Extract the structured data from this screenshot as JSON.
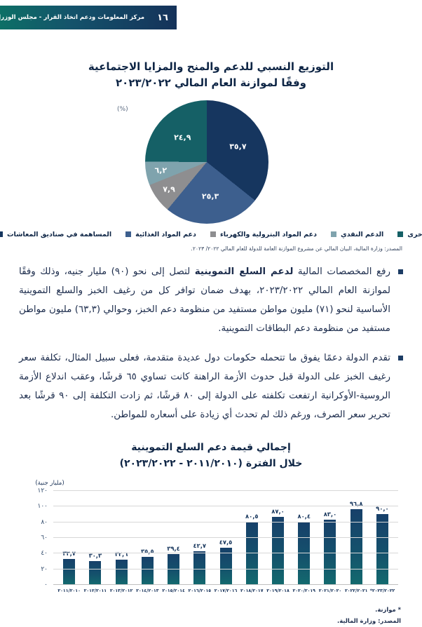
{
  "theme": {
    "header_teal": "#0d6f66",
    "header_navy": "#15325a",
    "text_navy": "#1c2c4c",
    "bar_gradient_top": "#17406a",
    "bar_gradient_bottom": "#136a6e"
  },
  "header": {
    "title": "مركز المعلومات ودعم اتخاذ القرار - مجلس الوزراء",
    "page_number": "١٦"
  },
  "paragraphs": {
    "p1_pre": "رفع المخصصات المالية ",
    "p1_bold": "لدعم السلع التموينية",
    "p1_rest": " لتصل إلى نحو (٩٠) مليار جنيه، وذلك وفقًا لموازنة العام المالي ٢٠٢٣/٢٠٢٢، بهدف ضمان توافر كل من رغيف الخبز والسلع التموينية الأساسية لنحو (٧١) مليون مواطن مستفيد من منظومة دعم الخبز، وحوالي (٦٣,٣) مليون مواطن مستفيد من منظومة دعم البطاقات التموينية.",
    "p2": "تقدم الدولة دعمًا يفوق ما تتحمله حكومات دول عديدة متقدمة، فعلى سبيل المثال، تكلفة سعر رغيف الخبز على الدولة قبل حدوث الأزمة الراهنة كانت تساوي ٦٥ قرشًا، وعقب اندلاع الأزمة الروسية-الأوكرانية ارتفعت تكلفته على الدولة إلى ٨٠ قرشًا، ثم زادت التكلفة إلى ٩٠ قرشًا بعد تحرير سعر الصرف، ورغم ذلك لم تحدث أي زيادة على أسعاره للمواطن."
  },
  "chart_data": [
    {
      "type": "pie",
      "title_line1": "التوزيع النسبي للدعم والمنح والمزايا الاجتماعية",
      "title_line2": "وفقًا لموازنة العام المالي ٢٠٢٣/٢٠٢٢",
      "unit": "(%)",
      "slices": [
        {
          "label": "المساهمة في صناديق المعاشات",
          "value": 35.7,
          "display": "٣٥,٧",
          "color": "#16365f"
        },
        {
          "label": "دعم المواد الغذائية",
          "value": 25.3,
          "display": "٢٥,٣",
          "color": "#3d5f8e"
        },
        {
          "label": "دعم المواد البترولية والكهرباء",
          "value": 7.9,
          "display": "٧,٩",
          "color": "#8e8e90"
        },
        {
          "label": "الدعم النقدي",
          "value": 6.2,
          "display": "٦,٢",
          "color": "#7fa3ad"
        },
        {
          "label": "أخرى",
          "value": 24.9,
          "display": "٢٤,٩",
          "color": "#156066"
        }
      ],
      "legend": [
        {
          "label": "أخرى",
          "color": "#156066"
        },
        {
          "label": "الدعم النقدي",
          "color": "#7fa3ad"
        },
        {
          "label": "دعم المواد البترولية والكهرباء",
          "color": "#8e8e90"
        },
        {
          "label": "دعم المواد الغذائية",
          "color": "#3d5f8e"
        },
        {
          "label": "المساهمة في صناديق المعاشات",
          "color": "#16365f"
        }
      ],
      "legend_position": "bottom",
      "source": "المصدر: وزارة المالية، البيان المالي عن مشروع الموازنة العامة للدولة للعام المالي ٢٠٢٢/ ٢٠٢٣."
    },
    {
      "type": "bar",
      "title_line1": "إجمالي قيمة دعم السلع التموينية",
      "title_line2": "خلال الفترة (٢٠١١/٢٠١٠ - ٢٠٢٣/٢٠٢٢)",
      "ylabel": "(مليار جنية)",
      "ylim": [
        0,
        120
      ],
      "grid": true,
      "yticks": [
        {
          "value": 0,
          "display": "٠"
        },
        {
          "value": 20,
          "display": "٢٠"
        },
        {
          "value": 40,
          "display": "٤٠"
        },
        {
          "value": 60,
          "display": "٦٠"
        },
        {
          "value": 80,
          "display": "٨٠"
        },
        {
          "value": 100,
          "display": "١٠٠"
        },
        {
          "value": 120,
          "display": "١٢٠"
        }
      ],
      "categories": [
        "٢٠١١/٢٠١٠",
        "٢٠١٢/٢٠١١",
        "٢٠١٣/٢٠١٢",
        "٢٠١٤/٢٠١٣",
        "٢٠١٥/٢٠١٤",
        "٢٠١٦/٢٠١٥",
        "٢٠١٧/٢٠١٦",
        "٢٠١٨/٢٠١٧",
        "٢٠١٩/٢٠١٨",
        "٢٠٢٠/٢٠١٩",
        "٢٠٢١/٢٠٢٠",
        "٢٠٢٢/٢٠٢١",
        "*٢٠٢٣/٢٠٢٢"
      ],
      "values": [
        32.7,
        30.3,
        32.6,
        35.5,
        39.4,
        42.7,
        47.5,
        80.5,
        87.0,
        80.4,
        83.0,
        96.8,
        90.0
      ],
      "value_labels": [
        "٣٢,٧",
        "٣٠,٣",
        "٣٢,٦",
        "٣٥,٥",
        "٣٩,٤",
        "٤٢,٧",
        "٤٧,٥",
        "٨٠,٥",
        "٨٧,٠",
        "٨٠,٤",
        "٨٣,٠",
        "٩٦,٨",
        "٩٠,٠"
      ],
      "footnote": "* موازنة.",
      "source": "المصدر: وزارة المالية."
    }
  ]
}
